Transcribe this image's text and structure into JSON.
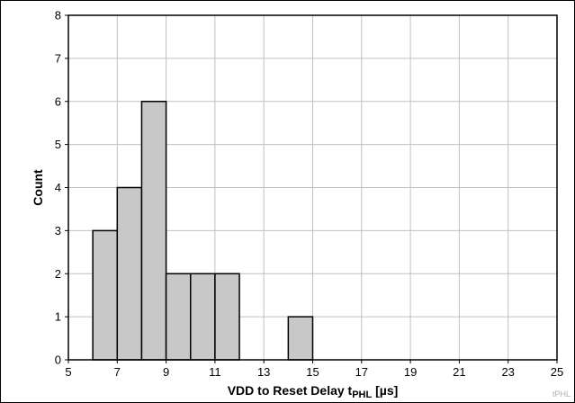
{
  "chart_data": {
    "type": "bar",
    "title": "",
    "xlabel": "VDD to Reset Delay t",
    "xlabel_subscript": "PHL",
    "xlabel_suffix": " [µs]",
    "ylabel": "Count",
    "xlim": [
      5,
      25
    ],
    "ylim": [
      0,
      8
    ],
    "x_ticks": [
      5,
      7,
      9,
      11,
      13,
      15,
      17,
      19,
      21,
      23,
      25
    ],
    "y_ticks": [
      0,
      1,
      2,
      3,
      4,
      5,
      6,
      7,
      8
    ],
    "grid": true,
    "bin_width": 1,
    "bins": [
      {
        "start": 6,
        "end": 7,
        "count": 3
      },
      {
        "start": 7,
        "end": 8,
        "count": 4
      },
      {
        "start": 8,
        "end": 9,
        "count": 6
      },
      {
        "start": 9,
        "end": 10,
        "count": 2
      },
      {
        "start": 10,
        "end": 11,
        "count": 2
      },
      {
        "start": 11,
        "end": 12,
        "count": 2
      },
      {
        "start": 14,
        "end": 15,
        "count": 1
      }
    ],
    "bar_color": "#c8c8c8",
    "bar_edge_color": "#000000",
    "grid_color": "#c0c0c0",
    "watermark": "tPHL"
  }
}
